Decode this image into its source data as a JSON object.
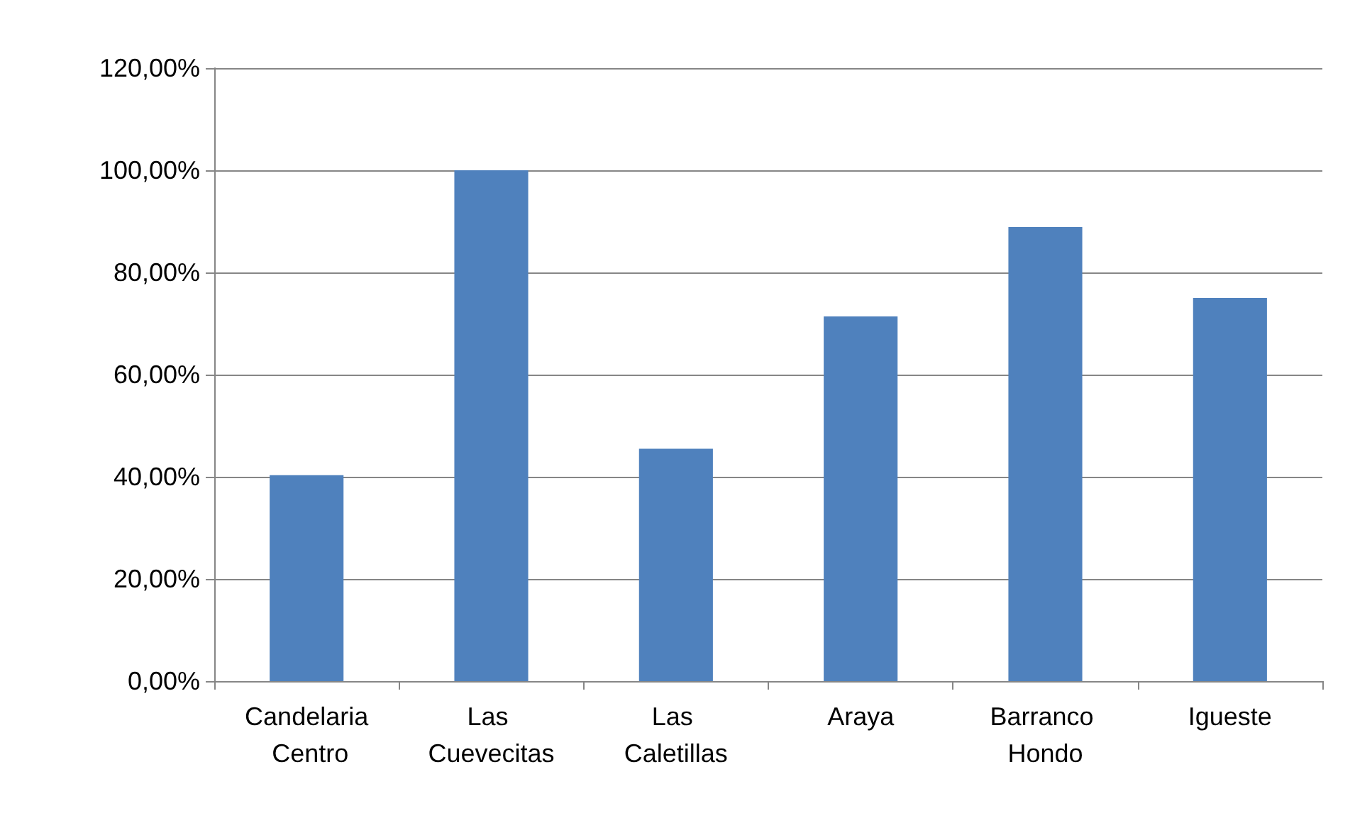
{
  "chart_data": {
    "type": "bar",
    "categories": [
      "Candelaria Centro",
      "Las Cuevecitas",
      "Las Caletillas",
      "Araya",
      "Barranco Hondo",
      "Igueste"
    ],
    "values": [
      40.3,
      100,
      45.5,
      71.4,
      88.9,
      75
    ],
    "color": "#4f81bd",
    "ylim": [
      0,
      120
    ],
    "yticks": [
      {
        "value": 0,
        "label": "0,00%"
      },
      {
        "value": 20,
        "label": "20,00%"
      },
      {
        "value": 40,
        "label": "40,00%"
      },
      {
        "value": 60,
        "label": "60,00%"
      },
      {
        "value": 80,
        "label": "80,00%"
      },
      {
        "value": 100,
        "label": "100,00%"
      },
      {
        "value": 120,
        "label": "120,00%"
      }
    ],
    "grid": "y"
  }
}
